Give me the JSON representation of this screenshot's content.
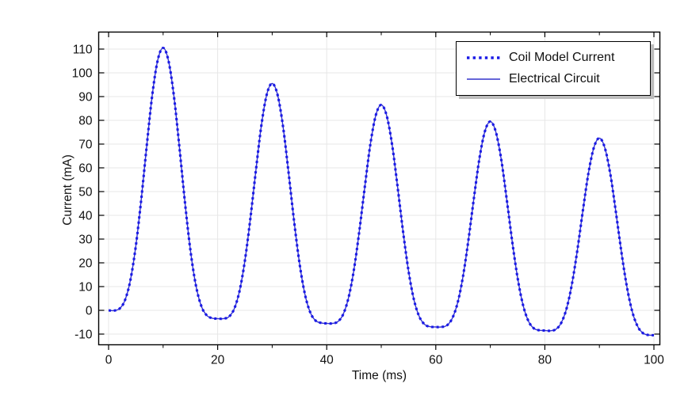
{
  "window": {
    "background": "#ffffff"
  },
  "chart_data": {
    "type": "line",
    "title": "",
    "xlabel": "Time (ms)",
    "ylabel": "Current (mA)",
    "x_range": [
      -1.9,
      101.3
    ],
    "y_range": [
      -14.3,
      117.3
    ],
    "x_ticks": [
      0,
      20,
      40,
      60,
      80,
      100
    ],
    "x_minor_ticks": [
      10,
      30,
      50,
      70,
      90
    ],
    "y_ticks": [
      110,
      100,
      90,
      80,
      70,
      60,
      50,
      40,
      30,
      20,
      10,
      0,
      -10
    ],
    "grid": true,
    "grid_color": "#e7e7e7",
    "axis_color": "#000000",
    "legend_position": "top-right",
    "series": [
      {
        "name": "Coil Model Current",
        "style": "dotted",
        "color": "#1a1ae6",
        "x_start": 0,
        "x_step": 1,
        "values": [
          0.0,
          -0.1,
          0.7,
          4.2,
          12.7,
          27.2,
          47.0,
          69.5,
          90.4,
          105.2,
          110.5,
          104.9,
          89.7,
          68.5,
          45.6,
          25.4,
          10.6,
          1.8,
          -2.1,
          -3.3,
          -3.5,
          -3.5,
          -2.8,
          0.4,
          8.0,
          21.0,
          38.7,
          58.8,
          77.5,
          90.8,
          95.5,
          90.6,
          77.1,
          58.2,
          37.9,
          20.0,
          6.8,
          -1.0,
          -4.4,
          -5.3,
          -5.5,
          -5.5,
          -4.8,
          -1.8,
          5.3,
          17.3,
          33.8,
          52.4,
          69.8,
          82.1,
          86.5,
          81.9,
          69.5,
          52.0,
          33.2,
          16.6,
          4.4,
          -2.8,
          -6.0,
          -6.9,
          -7.0,
          -7.0,
          -6.4,
          -3.5,
          3.1,
          14.4,
          29.9,
          47.5,
          63.8,
          75.3,
          79.5,
          75.2,
          63.5,
          47.0,
          29.3,
          13.7,
          2.2,
          -4.6,
          -7.6,
          -8.4,
          -8.5,
          -8.6,
          -8.0,
          -5.3,
          0.9,
          11.5,
          26.0,
          42.5,
          57.8,
          68.6,
          72.5,
          68.4,
          57.4,
          41.9,
          25.2,
          10.5,
          -0.3,
          -6.7,
          -9.6,
          -10.4,
          -10.5
        ]
      },
      {
        "name": "Electrical Circuit",
        "style": "solid",
        "color": "#3333cc",
        "x_start": 0,
        "x_step": 1,
        "values": [
          0.0,
          -0.1,
          0.7,
          4.2,
          12.7,
          27.2,
          47.0,
          69.5,
          90.4,
          105.2,
          110.5,
          104.9,
          89.7,
          68.5,
          45.6,
          25.4,
          10.6,
          1.8,
          -2.1,
          -3.3,
          -3.5,
          -3.5,
          -2.8,
          0.4,
          8.0,
          21.0,
          38.7,
          58.8,
          77.5,
          90.8,
          95.5,
          90.6,
          77.1,
          58.2,
          37.9,
          20.0,
          6.8,
          -1.0,
          -4.4,
          -5.3,
          -5.5,
          -5.5,
          -4.8,
          -1.8,
          5.3,
          17.3,
          33.8,
          52.4,
          69.8,
          82.1,
          86.5,
          81.9,
          69.5,
          52.0,
          33.2,
          16.6,
          4.4,
          -2.8,
          -6.0,
          -6.9,
          -7.0,
          -7.0,
          -6.4,
          -3.5,
          3.1,
          14.4,
          29.9,
          47.5,
          63.8,
          75.3,
          79.5,
          75.2,
          63.5,
          47.0,
          29.3,
          13.7,
          2.2,
          -4.6,
          -7.6,
          -8.4,
          -8.5,
          -8.6,
          -8.0,
          -5.3,
          0.9,
          11.5,
          26.0,
          42.5,
          57.8,
          68.6,
          72.5,
          68.4,
          57.4,
          41.9,
          25.2,
          10.5,
          -0.3,
          -6.7,
          -9.6,
          -10.4,
          -10.5
        ]
      }
    ]
  }
}
